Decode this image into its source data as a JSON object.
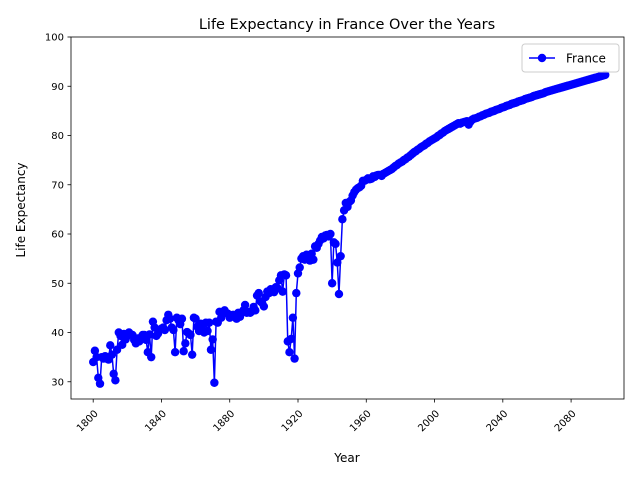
{
  "chart_data": {
    "type": "line",
    "title": "Life Expectancy in France Over the Years",
    "xlabel": "Year",
    "ylabel": "Life Expectancy",
    "xlim": [
      1787,
      2111
    ],
    "ylim": [
      26.5,
      100
    ],
    "xticks": [
      1800,
      1840,
      1880,
      1920,
      1960,
      2000,
      2040,
      2080
    ],
    "yticks": [
      30,
      40,
      50,
      60,
      70,
      80,
      90,
      100
    ],
    "xtick_rotation": 45,
    "grid": false,
    "legend_position": "top-right",
    "series": [
      {
        "name": "France",
        "color": "#0000ff",
        "marker": "circle",
        "points": [
          [
            1800,
            34
          ],
          [
            1801,
            36.3
          ],
          [
            1802,
            35
          ],
          [
            1803,
            30.8
          ],
          [
            1804,
            29.6
          ],
          [
            1805,
            35
          ],
          [
            1806,
            34.7
          ],
          [
            1807,
            35.2
          ],
          [
            1808,
            34.7
          ],
          [
            1809,
            34.5
          ],
          [
            1810,
            37.4
          ],
          [
            1811,
            35.5
          ],
          [
            1812,
            31.6
          ],
          [
            1813,
            30.3
          ],
          [
            1814,
            36.5
          ],
          [
            1815,
            40
          ],
          [
            1816,
            39.3
          ],
          [
            1817,
            37.5
          ],
          [
            1818,
            39.7
          ],
          [
            1819,
            38.6
          ],
          [
            1820,
            39.3
          ],
          [
            1821,
            40
          ],
          [
            1822,
            39.6
          ],
          [
            1823,
            39.5
          ],
          [
            1824,
            38.5
          ],
          [
            1825,
            37.8
          ],
          [
            1826,
            38.8
          ],
          [
            1827,
            38.2
          ],
          [
            1828,
            39
          ],
          [
            1829,
            39.5
          ],
          [
            1830,
            39.5
          ],
          [
            1831,
            38.5
          ],
          [
            1832,
            36
          ],
          [
            1833,
            39.6
          ],
          [
            1834,
            35
          ],
          [
            1835,
            42.2
          ],
          [
            1836,
            41
          ],
          [
            1837,
            39.3
          ],
          [
            1838,
            39.8
          ],
          [
            1839,
            40.5
          ],
          [
            1840,
            40.8
          ],
          [
            1841,
            41
          ],
          [
            1842,
            40.5
          ],
          [
            1843,
            42.5
          ],
          [
            1844,
            43.6
          ],
          [
            1845,
            42.8
          ],
          [
            1846,
            41
          ],
          [
            1847,
            40.5
          ],
          [
            1848,
            36
          ],
          [
            1849,
            43
          ],
          [
            1850,
            42.5
          ],
          [
            1851,
            41.7
          ],
          [
            1852,
            42.8
          ],
          [
            1853,
            36.2
          ],
          [
            1854,
            37.8
          ],
          [
            1855,
            40.1
          ],
          [
            1856,
            39.8
          ],
          [
            1857,
            39.5
          ],
          [
            1858,
            35.5
          ],
          [
            1859,
            43
          ],
          [
            1860,
            42.8
          ],
          [
            1861,
            41.2
          ],
          [
            1862,
            40.3
          ],
          [
            1863,
            41.8
          ],
          [
            1864,
            41.5
          ],
          [
            1865,
            40
          ],
          [
            1866,
            42
          ],
          [
            1867,
            40.3
          ],
          [
            1868,
            42
          ],
          [
            1869,
            36.5
          ],
          [
            1870,
            38.6
          ],
          [
            1871,
            29.8
          ],
          [
            1872,
            42.2
          ],
          [
            1873,
            42
          ],
          [
            1874,
            44.2
          ],
          [
            1875,
            43
          ],
          [
            1876,
            44
          ],
          [
            1877,
            44.5
          ],
          [
            1878,
            44
          ],
          [
            1879,
            43.8
          ],
          [
            1880,
            43
          ],
          [
            1881,
            43.5
          ],
          [
            1882,
            43.6
          ],
          [
            1883,
            43.5
          ],
          [
            1884,
            42.8
          ],
          [
            1885,
            44
          ],
          [
            1886,
            43.2
          ],
          [
            1887,
            44
          ],
          [
            1888,
            44.5
          ],
          [
            1889,
            45.6
          ],
          [
            1890,
            44
          ],
          [
            1891,
            44.2
          ],
          [
            1892,
            44
          ],
          [
            1893,
            44.3
          ],
          [
            1894,
            45.2
          ],
          [
            1895,
            44.5
          ],
          [
            1896,
            47.5
          ],
          [
            1897,
            48
          ],
          [
            1898,
            46.3
          ],
          [
            1899,
            46
          ],
          [
            1900,
            45.3
          ],
          [
            1901,
            47.2
          ],
          [
            1902,
            48.3
          ],
          [
            1903,
            48
          ],
          [
            1904,
            48.8
          ],
          [
            1905,
            48.5
          ],
          [
            1906,
            48.2
          ],
          [
            1907,
            49.2
          ],
          [
            1908,
            49
          ],
          [
            1909,
            50.6
          ],
          [
            1910,
            51.6
          ],
          [
            1911,
            48.3
          ],
          [
            1912,
            51.8
          ],
          [
            1913,
            51.6
          ],
          [
            1914,
            38.2
          ],
          [
            1915,
            36
          ],
          [
            1916,
            38.7
          ],
          [
            1917,
            43
          ],
          [
            1918,
            34.7
          ],
          [
            1919,
            48
          ],
          [
            1920,
            52
          ],
          [
            1921,
            53.2
          ],
          [
            1922,
            55
          ],
          [
            1923,
            55.5
          ],
          [
            1924,
            54.8
          ],
          [
            1925,
            55.8
          ],
          [
            1926,
            55.2
          ],
          [
            1927,
            54.6
          ],
          [
            1928,
            56
          ],
          [
            1929,
            54.8
          ],
          [
            1930,
            57.5
          ],
          [
            1931,
            57.2
          ],
          [
            1932,
            58
          ],
          [
            1933,
            58.7
          ],
          [
            1934,
            59.4
          ],
          [
            1935,
            59.1
          ],
          [
            1936,
            59.7
          ],
          [
            1937,
            59.8
          ],
          [
            1938,
            59.5
          ],
          [
            1939,
            60
          ],
          [
            1940,
            50
          ],
          [
            1941,
            58.3
          ],
          [
            1942,
            58
          ],
          [
            1943,
            54.2
          ],
          [
            1944,
            47.8
          ],
          [
            1945,
            55.5
          ],
          [
            1946,
            63
          ],
          [
            1947,
            64.8
          ],
          [
            1948,
            66.3
          ],
          [
            1949,
            65.5
          ],
          [
            1950,
            66.5
          ],
          [
            1951,
            66.8
          ],
          [
            1952,
            67.8
          ],
          [
            1953,
            68.5
          ],
          [
            1954,
            69
          ],
          [
            1955,
            69.3
          ],
          [
            1956,
            69.5
          ],
          [
            1957,
            69.8
          ],
          [
            1958,
            70.8
          ],
          [
            1959,
            70.8
          ],
          [
            1960,
            71
          ],
          [
            1961,
            71.3
          ],
          [
            1962,
            71.1
          ],
          [
            1963,
            71.2
          ],
          [
            1964,
            71.7
          ],
          [
            1965,
            71.6
          ],
          [
            1966,
            71.9
          ],
          [
            1967,
            72
          ],
          [
            1968,
            72
          ],
          [
            1969,
            71.8
          ],
          [
            1970,
            72.2
          ],
          [
            1971,
            72.4
          ],
          [
            1972,
            72.6
          ],
          [
            1973,
            72.8
          ],
          [
            1974,
            73
          ],
          [
            1975,
            73.2
          ],
          [
            1976,
            73.5
          ],
          [
            1977,
            73.8
          ],
          [
            1978,
            74
          ],
          [
            1979,
            74.3
          ],
          [
            1980,
            74.5
          ],
          [
            1981,
            74.7
          ],
          [
            1982,
            75
          ],
          [
            1983,
            75.2
          ],
          [
            1984,
            75.5
          ],
          [
            1985,
            75.7
          ],
          [
            1986,
            76
          ],
          [
            1987,
            76.3
          ],
          [
            1988,
            76.6
          ],
          [
            1989,
            76.8
          ],
          [
            1990,
            77.1
          ],
          [
            1991,
            77.3
          ],
          [
            1992,
            77.6
          ],
          [
            1993,
            77.8
          ],
          [
            1994,
            78
          ],
          [
            1995,
            78.3
          ],
          [
            1996,
            78.5
          ],
          [
            1997,
            78.8
          ],
          [
            1998,
            79
          ],
          [
            1999,
            79.2
          ],
          [
            2000,
            79.4
          ],
          [
            2001,
            79.6
          ],
          [
            2002,
            79.9
          ],
          [
            2003,
            80.1
          ],
          [
            2004,
            80.4
          ],
          [
            2005,
            80.6
          ],
          [
            2006,
            80.9
          ],
          [
            2007,
            81.1
          ],
          [
            2008,
            81.3
          ],
          [
            2009,
            81.5
          ],
          [
            2010,
            81.7
          ],
          [
            2011,
            81.9
          ],
          [
            2012,
            82.1
          ],
          [
            2013,
            82.3
          ],
          [
            2014,
            82.5
          ],
          [
            2015,
            82.4
          ],
          [
            2016,
            82.6
          ],
          [
            2017,
            82.7
          ],
          [
            2018,
            82.8
          ],
          [
            2019,
            82.9
          ],
          [
            2020,
            82.2
          ],
          [
            2021,
            82.8
          ],
          [
            2022,
            83.2
          ],
          [
            2023,
            83.4
          ],
          [
            2024,
            83.5
          ],
          [
            2025,
            83.6
          ],
          [
            2026,
            83.8
          ],
          [
            2027,
            83.9
          ],
          [
            2028,
            84.1
          ],
          [
            2029,
            84.2
          ],
          [
            2030,
            84.4
          ],
          [
            2031,
            84.5
          ],
          [
            2032,
            84.6
          ],
          [
            2033,
            84.8
          ],
          [
            2034,
            84.9
          ],
          [
            2035,
            85
          ],
          [
            2036,
            85.2
          ],
          [
            2037,
            85.3
          ],
          [
            2038,
            85.4
          ],
          [
            2039,
            85.6
          ],
          [
            2040,
            85.7
          ],
          [
            2041,
            85.8
          ],
          [
            2042,
            86
          ],
          [
            2043,
            86.1
          ],
          [
            2044,
            86.2
          ],
          [
            2045,
            86.4
          ],
          [
            2046,
            86.5
          ],
          [
            2047,
            86.6
          ],
          [
            2048,
            86.7
          ],
          [
            2049,
            86.9
          ],
          [
            2050,
            87
          ],
          [
            2051,
            87.1
          ],
          [
            2052,
            87.2
          ],
          [
            2053,
            87.4
          ],
          [
            2054,
            87.5
          ],
          [
            2055,
            87.6
          ],
          [
            2056,
            87.7
          ],
          [
            2057,
            87.8
          ],
          [
            2058,
            88
          ],
          [
            2059,
            88.1
          ],
          [
            2060,
            88.2
          ],
          [
            2061,
            88.3
          ],
          [
            2062,
            88.4
          ],
          [
            2063,
            88.5
          ],
          [
            2064,
            88.6
          ],
          [
            2065,
            88.8
          ],
          [
            2066,
            88.9
          ],
          [
            2067,
            89
          ],
          [
            2068,
            89.1
          ],
          [
            2069,
            89.2
          ],
          [
            2070,
            89.3
          ],
          [
            2071,
            89.4
          ],
          [
            2072,
            89.5
          ],
          [
            2073,
            89.6
          ],
          [
            2074,
            89.7
          ],
          [
            2075,
            89.8
          ],
          [
            2076,
            89.9
          ],
          [
            2077,
            90
          ],
          [
            2078,
            90.1
          ],
          [
            2079,
            90.2
          ],
          [
            2080,
            90.3
          ],
          [
            2081,
            90.4
          ],
          [
            2082,
            90.5
          ],
          [
            2083,
            90.6
          ],
          [
            2084,
            90.7
          ],
          [
            2085,
            90.8
          ],
          [
            2086,
            90.9
          ],
          [
            2087,
            91
          ],
          [
            2088,
            91.1
          ],
          [
            2089,
            91.2
          ],
          [
            2090,
            91.3
          ],
          [
            2091,
            91.4
          ],
          [
            2092,
            91.5
          ],
          [
            2093,
            91.6
          ],
          [
            2094,
            91.7
          ],
          [
            2095,
            91.8
          ],
          [
            2096,
            91.9
          ],
          [
            2097,
            92
          ],
          [
            2098,
            92.1
          ],
          [
            2099,
            92.2
          ],
          [
            2100,
            92.3
          ]
        ]
      }
    ]
  }
}
